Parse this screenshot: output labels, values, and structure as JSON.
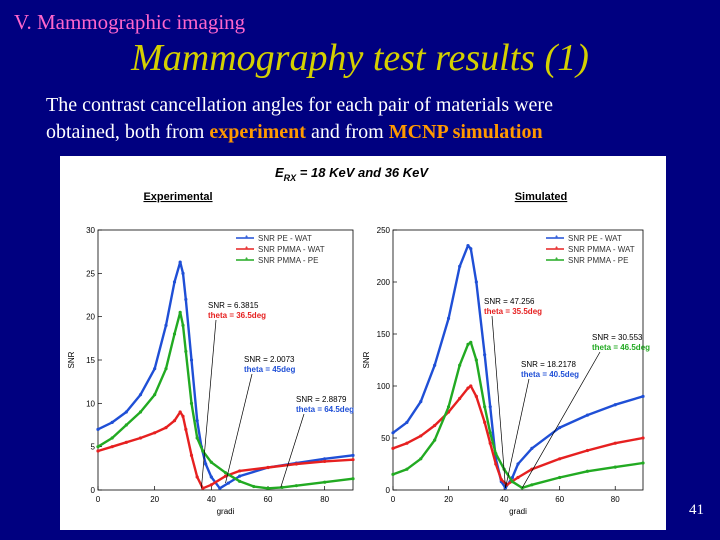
{
  "header": {
    "section": "V. Mammographic imaging",
    "title": "Mammography test results (1)"
  },
  "body": {
    "line1": "The contrast cancellation angles for each pair of materials were",
    "line2_pre": "obtained, both from ",
    "line2_hl1": "experiment",
    "line2_mid": " and from ",
    "line2_hl2": "MCNP simulation"
  },
  "figure": {
    "energy_main": "E",
    "energy_sub": "RX",
    "energy_rest": " = 18 KeV and 36 KeV"
  },
  "slide_number": "41",
  "chart_data": [
    {
      "type": "line",
      "title": "Experimental",
      "xlabel": "gradi",
      "ylabel": "SNR",
      "xlim": [
        0,
        90
      ],
      "ylim": [
        0,
        30
      ],
      "xticks": [
        0,
        20,
        40,
        60,
        80
      ],
      "yticks": [
        0,
        5,
        10,
        15,
        20,
        25,
        30
      ],
      "legend_position": "top-right",
      "series": [
        {
          "name": "SNR PE - WAT",
          "color": "#1f4fd6",
          "x": [
            0,
            5,
            10,
            15,
            20,
            24,
            27,
            29,
            30,
            31,
            33,
            35,
            36.5,
            38,
            40,
            43,
            46,
            50,
            60,
            70,
            80,
            90
          ],
          "y": [
            7,
            7.8,
            9,
            11,
            14,
            19,
            24,
            26.3,
            25,
            22,
            15,
            8,
            5,
            3,
            1.5,
            0.2,
            0.8,
            1.6,
            2.6,
            3.1,
            3.6,
            4
          ]
        },
        {
          "name": "SNR PMMA - WAT",
          "color": "#e62020",
          "x": [
            0,
            5,
            10,
            15,
            20,
            24,
            27,
            29,
            30,
            31,
            33,
            35,
            37,
            40,
            45,
            50,
            60,
            70,
            80,
            90
          ],
          "y": [
            4.5,
            5,
            5.5,
            6,
            6.6,
            7.2,
            8,
            9,
            8.5,
            7,
            4,
            1.5,
            0.2,
            0.6,
            1.6,
            2.2,
            2.6,
            3,
            3.3,
            3.5
          ]
        },
        {
          "name": "SNR PMMA - PE",
          "color": "#22aa22",
          "x": [
            0,
            5,
            10,
            15,
            20,
            24,
            27,
            29,
            30,
            31,
            33,
            35,
            37,
            40,
            45,
            50,
            55,
            60,
            65,
            70,
            80,
            90
          ],
          "y": [
            5,
            6,
            7.5,
            9,
            11,
            14,
            18,
            20.5,
            19,
            16,
            10,
            6,
            4.5,
            3.2,
            2,
            1,
            0.4,
            0.2,
            0.3,
            0.5,
            0.9,
            1.3
          ]
        }
      ],
      "annotations": [
        {
          "snr": "SNR = 6.3815",
          "theta": "theta = 36.5deg",
          "theta_color": "#e62020",
          "target": [
            36.5,
            0.2
          ]
        },
        {
          "snr": "SNR = 2.0073",
          "theta": "theta = 45deg",
          "theta_color": "#1f4fd6",
          "target": [
            45,
            0.8
          ]
        },
        {
          "snr": "SNR = 2.8879",
          "theta": "theta = 64.5deg",
          "theta_color": "#1f4fd6",
          "target": [
            64.5,
            0.3
          ]
        }
      ]
    },
    {
      "type": "line",
      "title": "Simulated",
      "xlabel": "gradi",
      "ylabel": "SNR",
      "xlim": [
        0,
        90
      ],
      "ylim": [
        0,
        250
      ],
      "xticks": [
        0,
        20,
        40,
        60,
        80
      ],
      "yticks": [
        0,
        50,
        100,
        150,
        200,
        250
      ],
      "legend_position": "top-right",
      "series": [
        {
          "name": "SNR PE - WAT",
          "color": "#1f4fd6",
          "x": [
            0,
            5,
            10,
            15,
            20,
            24,
            27,
            28,
            30,
            33,
            35,
            37,
            39,
            40.5,
            43,
            45,
            50,
            60,
            70,
            80,
            90
          ],
          "y": [
            55,
            65,
            85,
            120,
            165,
            215,
            235,
            232,
            200,
            130,
            80,
            30,
            8,
            2,
            12,
            25,
            40,
            60,
            72,
            82,
            90
          ]
        },
        {
          "name": "SNR PMMA - WAT",
          "color": "#e62020",
          "x": [
            0,
            5,
            10,
            15,
            20,
            24,
            27,
            28,
            30,
            33,
            35,
            37,
            39,
            41,
            45,
            50,
            60,
            70,
            80,
            90
          ],
          "y": [
            40,
            45,
            52,
            62,
            75,
            88,
            98,
            100,
            90,
            65,
            45,
            25,
            10,
            5,
            12,
            20,
            30,
            38,
            45,
            50
          ]
        },
        {
          "name": "SNR PMMA - PE",
          "color": "#22aa22",
          "x": [
            0,
            5,
            10,
            15,
            20,
            24,
            27,
            28,
            30,
            33,
            35,
            37,
            40,
            43,
            46.5,
            50,
            60,
            70,
            80,
            90
          ],
          "y": [
            15,
            20,
            30,
            48,
            80,
            120,
            140,
            142,
            125,
            80,
            55,
            35,
            20,
            8,
            2,
            5,
            12,
            18,
            22,
            26
          ]
        }
      ],
      "annotations": [
        {
          "snr": "SNR = 47.256",
          "theta": "theta = 35.5deg",
          "theta_color": "#e62020",
          "target": [
            40.5,
            2
          ]
        },
        {
          "snr": "SNR = 18.2178",
          "theta": "theta = 40.5deg",
          "theta_color": "#1f4fd6",
          "target": [
            40.5,
            2
          ]
        },
        {
          "snr": "SNR = 30.553",
          "theta": "theta = 46.5deg",
          "theta_color": "#22aa22",
          "target": [
            46.5,
            2
          ]
        }
      ]
    }
  ]
}
